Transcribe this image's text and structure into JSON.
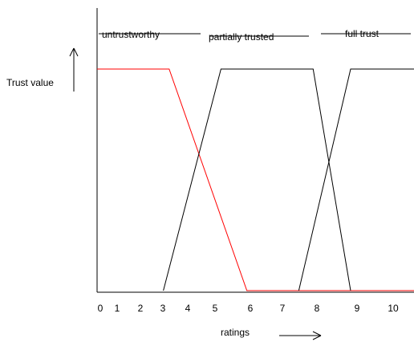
{
  "chart_data": {
    "type": "line",
    "title": "",
    "xlabel": "ratings",
    "ylabel": "Trust value",
    "xlim": [
      0,
      11
    ],
    "ylim": [
      0,
      1
    ],
    "x_ticks": [
      "0",
      "1",
      "2",
      "3",
      "4",
      "5",
      "6",
      "7",
      "8",
      "9",
      "10"
    ],
    "grid": false,
    "series": [
      {
        "name": "untrustworthy",
        "color": "#ff0000",
        "points": [
          [
            0,
            1
          ],
          [
            2.5,
            1
          ],
          [
            5.2,
            0
          ],
          [
            11,
            0
          ]
        ]
      },
      {
        "name": "partially trusted",
        "color": "#000000",
        "points": [
          [
            2.3,
            0
          ],
          [
            4.3,
            1
          ],
          [
            7.5,
            1
          ],
          [
            8.8,
            0
          ]
        ]
      },
      {
        "name": "full trust",
        "color": "#000000",
        "points": [
          [
            7.0,
            0
          ],
          [
            8.8,
            1
          ],
          [
            11,
            1
          ]
        ]
      }
    ]
  }
}
